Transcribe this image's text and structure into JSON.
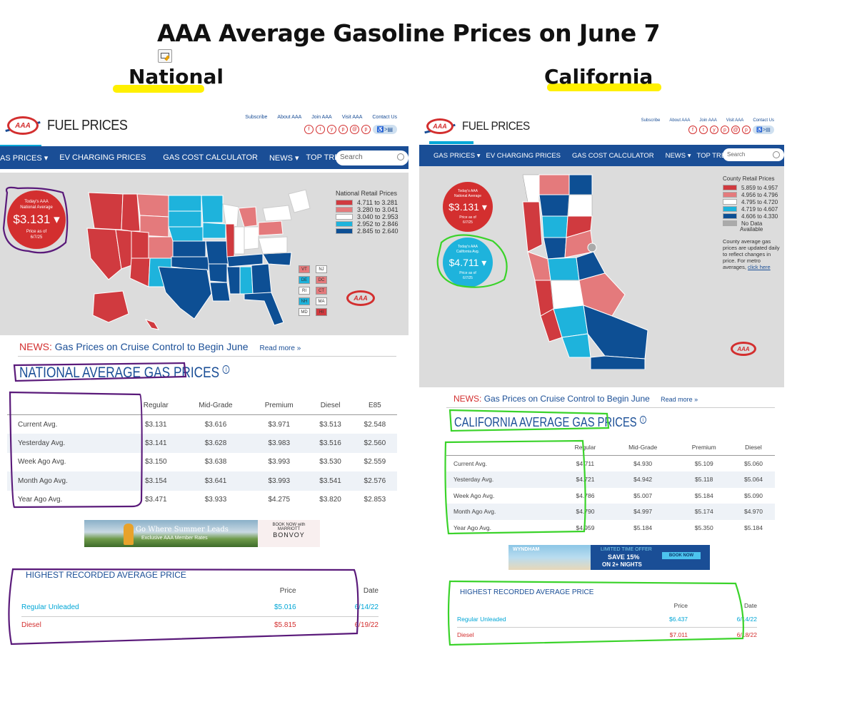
{
  "title": "AAA Average Gasoline Prices on June 7",
  "labels": {
    "national": "National",
    "california": "California"
  },
  "colors": {
    "aaa_blue": "#1a4e96",
    "aaa_red": "#d32f2f",
    "highlight": "#fff000",
    "national_circle": "#5a1a7a",
    "ca_circle": "#3ad32a"
  },
  "site": {
    "fuel_title": "FUEL PRICES",
    "links": [
      "Subscribe",
      "About AAA",
      "Join AAA",
      "Visit AAA",
      "Contact Us"
    ],
    "social": [
      "f",
      "t",
      "y",
      "p",
      "@",
      "p"
    ],
    "accessibility": "♿>▤",
    "nav_national": [
      "AS PRICES ▾",
      "EV CHARGING PRICES",
      "GAS COST CALCULATOR",
      "NEWS ▾",
      "TOP TRENDS"
    ],
    "nav_ca": [
      "GAS PRICES ▾",
      "EV CHARGING PRICES",
      "GAS COST CALCULATOR",
      "NEWS ▾",
      "TOP TRENDS"
    ],
    "search_placeholder": "Search",
    "logo_text": "AAA",
    "news_label": "NEWS:",
    "news_headline": "Gas Prices on Cruise Control to Begin June",
    "read_more": "Read more »"
  },
  "national": {
    "badge": {
      "line1": "Today's AAA",
      "line2": "National Average",
      "price": "$3.131 ▾",
      "asof1": "Price as of",
      "asof2": "6/7/25"
    },
    "legend": {
      "title": "National Retail Prices",
      "ranges": [
        {
          "label": "4.711 to 3.281",
          "color": "#d03a3f"
        },
        {
          "label": "3.280 to 3.041",
          "color": "#e47a7c"
        },
        {
          "label": "3.040 to 2.953",
          "color": "#ffffff"
        },
        {
          "label": "2.952 to 2.846",
          "color": "#1eb3dc"
        },
        {
          "label": "2.845 to 2.640",
          "color": "#0d4f94"
        }
      ]
    },
    "small_states": [
      {
        "st": "VT",
        "color": "#e47a7c"
      },
      {
        "st": "NJ",
        "color": "#ffffff"
      },
      {
        "st": "DE",
        "color": "#1eb3dc"
      },
      {
        "st": "DC",
        "color": "#e47a7c"
      },
      {
        "st": "RI",
        "color": "#ffffff"
      },
      {
        "st": "CT",
        "color": "#e47a7c"
      },
      {
        "st": "NH",
        "color": "#1eb3dc"
      },
      {
        "st": "MA",
        "color": "#ffffff"
      },
      {
        "st": "MD",
        "color": "#ffffff"
      },
      {
        "st": "HI",
        "color": "#d03a3f"
      }
    ],
    "heading": "NATIONAL AVERAGE GAS PRICES",
    "columns": [
      "",
      "Regular",
      "Mid-Grade",
      "Premium",
      "Diesel",
      "E85"
    ],
    "rows": [
      [
        "Current Avg.",
        "$3.131",
        "$3.616",
        "$3.971",
        "$3.513",
        "$2.548"
      ],
      [
        "Yesterday Avg.",
        "$3.141",
        "$3.628",
        "$3.983",
        "$3.516",
        "$2.560"
      ],
      [
        "Week Ago Avg.",
        "$3.150",
        "$3.638",
        "$3.993",
        "$3.530",
        "$2.559"
      ],
      [
        "Month Ago Avg.",
        "$3.154",
        "$3.641",
        "$3.993",
        "$3.541",
        "$2.576"
      ],
      [
        "Year Ago Avg.",
        "$3.471",
        "$3.933",
        "$4.275",
        "$3.820",
        "$2.853"
      ]
    ],
    "ad": {
      "line1": "Go Where Summer Leads",
      "line2": "Exclusive AAA Member Rates",
      "cta": "BOOK NOW with",
      "brand1": "MARRIOTT",
      "brand2": "BONVOY"
    },
    "highest": {
      "title": "HIGHEST RECORDED AVERAGE PRICE",
      "col_price": "Price",
      "col_date": "Date",
      "rows": [
        [
          "Regular Unleaded",
          "$5.016",
          "6/14/22"
        ],
        [
          "Diesel",
          "$5.815",
          "6/19/22"
        ]
      ]
    }
  },
  "california": {
    "badge_nat": {
      "line1": "Today's AAA",
      "line2": "National Average",
      "price": "$3.131 ▾",
      "asof1": "Price as of",
      "asof2": "6/7/25"
    },
    "badge_ca": {
      "line1": "Today's AAA",
      "line2": "California Avg.",
      "price": "$4.711 ▾",
      "asof1": "Price as of",
      "asof2": "6/7/25"
    },
    "legend": {
      "title": "County Retail Prices",
      "ranges": [
        {
          "label": "5.859 to 4.957",
          "color": "#d03a3f"
        },
        {
          "label": "4.956 to 4.796",
          "color": "#e47a7c"
        },
        {
          "label": "4.795 to 4.720",
          "color": "#ffffff"
        },
        {
          "label": "4.719 to 4.607",
          "color": "#1eb3dc"
        },
        {
          "label": "4.606 to 4.330",
          "color": "#0d4f94"
        },
        {
          "label": "No Data",
          "color": "#aaaaaa"
        }
      ],
      "available": "Available",
      "note": "County average gas prices are updated daily to reflect changes in price. For metro averages,",
      "link": "click here"
    },
    "heading": "CALIFORNIA AVERAGE GAS PRICES",
    "columns": [
      "",
      "Regular",
      "Mid-Grade",
      "Premium",
      "Diesel"
    ],
    "rows": [
      [
        "Current Avg.",
        "$4.711",
        "$4.930",
        "$5.109",
        "$5.060"
      ],
      [
        "Yesterday Avg.",
        "$4.721",
        "$4.942",
        "$5.118",
        "$5.064"
      ],
      [
        "Week Ago Avg.",
        "$4.786",
        "$5.007",
        "$5.184",
        "$5.090"
      ],
      [
        "Month Ago Avg.",
        "$4.790",
        "$4.997",
        "$5.174",
        "$4.970"
      ],
      [
        "Year Ago Avg.",
        "$4.959",
        "$5.184",
        "$5.350",
        "$5.184"
      ]
    ],
    "ad": {
      "brand": "WYNDHAM",
      "line1": "LIMITED TIME OFFER",
      "line2": "SAVE 15%",
      "line3": "ON 2+ NIGHTS",
      "cta": "BOOK NOW"
    },
    "highest": {
      "title": "HIGHEST RECORDED AVERAGE PRICE",
      "col_price": "Price",
      "col_date": "Date",
      "rows": [
        [
          "Regular Unleaded",
          "$6.437",
          "6/14/22"
        ],
        [
          "Diesel",
          "$7.011",
          "6/18/22"
        ]
      ]
    }
  }
}
